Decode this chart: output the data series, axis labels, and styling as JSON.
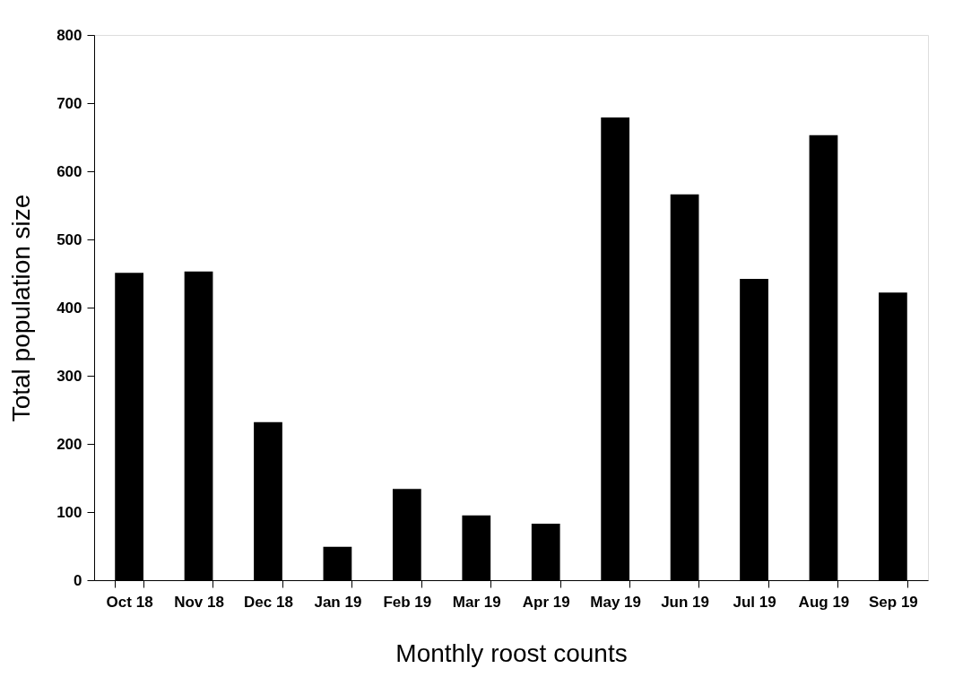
{
  "chart_data": {
    "type": "bar",
    "xlabel": "Monthly roost counts",
    "ylabel": "Total population size",
    "categories": [
      "Oct 18",
      "Nov 18",
      "Dec 18",
      "Jan 19",
      "Feb 19",
      "Mar 19",
      "Apr 19",
      "May 19",
      "Jun 19",
      "Jul 19",
      "Aug 19",
      "Sep 19"
    ],
    "values": [
      451,
      453,
      232,
      49,
      134,
      95,
      83,
      679,
      566,
      442,
      653,
      422
    ],
    "color": "#000000",
    "ylim": [
      0,
      800
    ],
    "yticks": [
      0,
      100,
      200,
      300,
      400,
      500,
      600,
      700,
      800
    ],
    "grid": false
  }
}
